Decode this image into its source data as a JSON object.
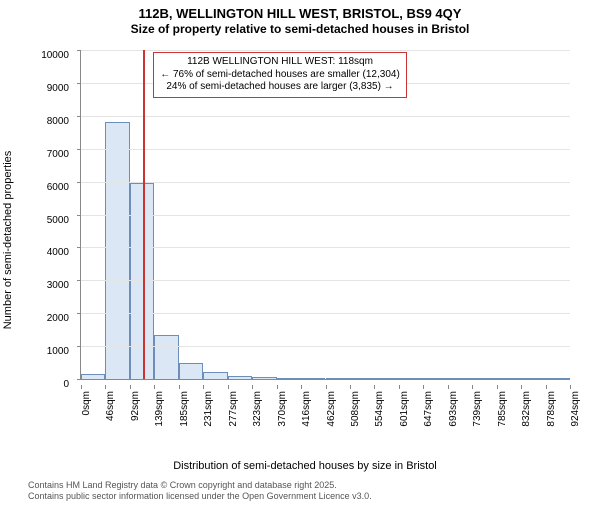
{
  "title": {
    "line1": "112B, WELLINGTON HILL WEST, BRISTOL, BS9 4QY",
    "line2": "Size of property relative to semi-detached houses in Bristol"
  },
  "axes": {
    "x_label": "Distribution of semi-detached houses by size in Bristol",
    "y_label": "Number of semi-detached properties",
    "x_ticks": [
      "0sqm",
      "46sqm",
      "92sqm",
      "139sqm",
      "185sqm",
      "231sqm",
      "277sqm",
      "323sqm",
      "370sqm",
      "416sqm",
      "462sqm",
      "508sqm",
      "554sqm",
      "601sqm",
      "647sqm",
      "693sqm",
      "739sqm",
      "785sqm",
      "832sqm",
      "878sqm",
      "924sqm"
    ],
    "y_ticks": [
      0,
      1000,
      2000,
      3000,
      4000,
      5000,
      6000,
      7000,
      8000,
      9000,
      10000
    ],
    "y_max": 10000,
    "x_bin_count": 20
  },
  "bars": {
    "values": [
      150,
      7800,
      5950,
      1350,
      500,
      200,
      100,
      60,
      20,
      15,
      10,
      8,
      5,
      4,
      3,
      2,
      2,
      1,
      1,
      1
    ],
    "fill": "#dbe7f5",
    "stroke": "#6b8fb8",
    "width_ratio": 1.0
  },
  "marker": {
    "value_sqm": 118,
    "max_sqm": 924,
    "color": "#cc3333"
  },
  "callout": {
    "border": "#cc3333",
    "lines": [
      "112B WELLINGTON HILL WEST: 118sqm",
      "← 76% of semi-detached houses are smaller (12,304)",
      "24% of semi-detached houses are larger (3,835) →"
    ]
  },
  "grid": {
    "color": "#e4e4e4"
  },
  "footer": {
    "line1": "Contains HM Land Registry data © Crown copyright and database right 2025.",
    "line2": "Contains public sector information licensed under the Open Government Licence v3.0."
  },
  "fontsizes": {
    "title": 13,
    "subtitle": 12,
    "axis_label": 11,
    "tick": 10,
    "callout": 10,
    "footer": 9
  }
}
